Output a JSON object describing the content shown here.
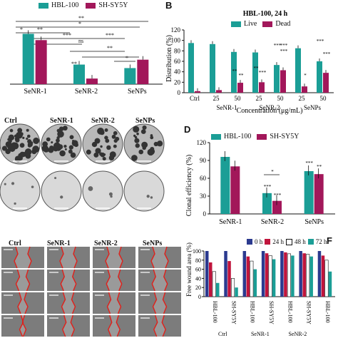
{
  "colors": {
    "teal": "#1b9e96",
    "crimson": "#a2175a",
    "white_bar": "#ffffff"
  },
  "panel_B": {
    "letter": "B"
  },
  "panel_D": {
    "letter": "D"
  },
  "panel_F": {
    "letter": "F"
  },
  "panel_A": {
    "legend": [
      "HBL-100",
      "SH-SY5Y"
    ],
    "sig": [
      "**",
      "*",
      "**",
      "***",
      "ns",
      "**",
      "*",
      "***",
      "**",
      "*"
    ]
  },
  "panel_C": {
    "row_labels": [
      "Ctrl",
      "SeNR-1",
      "SeNR-2",
      "SeNPs"
    ]
  },
  "panel_E": {
    "col_labels": [
      "Ctrl",
      "SeNR-1",
      "SeNR-2",
      "SeNPs"
    ]
  },
  "chart_data": [
    {
      "id": "A",
      "type": "bar",
      "categories": [
        "SeNR-1",
        "SeNR-2",
        "SeNPs"
      ],
      "series": [
        {
          "name": "HBL-100",
          "values": [
            72,
            28,
            23
          ]
        },
        {
          "name": "SH-SY5Y",
          "values": [
            63,
            8,
            35
          ]
        }
      ],
      "ylim": [
        0,
        100
      ]
    },
    {
      "id": "B",
      "type": "bar",
      "title": "HBL-100, 24 h",
      "ylabel": "Distribution (%)",
      "xlabel": "Concentration (μg/mL)",
      "ylim": [
        0,
        120
      ],
      "yticks": [
        0,
        20,
        40,
        60,
        80,
        100,
        120
      ],
      "categories": [
        "Ctrl",
        "25",
        "50",
        "25",
        "50",
        "25",
        "50"
      ],
      "groups": [
        "SeNR-1",
        "SeNR-2",
        "SeNPs"
      ],
      "series": [
        {
          "name": "Live",
          "values": [
            95,
            93,
            78,
            77,
            53,
            85,
            60
          ]
        },
        {
          "name": "Dead",
          "values": [
            3,
            5,
            19,
            20,
            43,
            12,
            38
          ]
        }
      ],
      "annotations": [
        "**",
        "**",
        "**",
        "***",
        "***",
        "***",
        "***",
        "*",
        "***",
        "***"
      ]
    },
    {
      "id": "D",
      "type": "bar",
      "ylabel": "Clonal efficiency (%)",
      "ylim": [
        0,
        120
      ],
      "yticks": [
        0,
        30,
        60,
        90,
        120
      ],
      "categories": [
        "SeNR-1",
        "SeNR-2",
        "SeNPs"
      ],
      "series": [
        {
          "name": "HBL-100",
          "values": [
            96,
            35,
            72
          ]
        },
        {
          "name": "SH-SY5Y",
          "values": [
            80,
            22,
            67
          ]
        }
      ],
      "annotations": [
        "*",
        "***",
        "***",
        "***",
        "**"
      ]
    },
    {
      "id": "F",
      "type": "bar",
      "ylabel": "Free wound area (%)",
      "ylim": [
        0,
        100
      ],
      "yticks": [
        0,
        20,
        40,
        60,
        80,
        100
      ],
      "categories": [
        "HBL-100",
        "SH-SY5Y",
        "HBL-100",
        "SH-SY5Y",
        "HBL-100",
        "SH-SY5Y",
        "HBL-100"
      ],
      "groups": [
        "Ctrl",
        "SeNR-1",
        "SeNR-2"
      ],
      "series": [
        {
          "name": "0 h",
          "values": [
            100,
            100,
            100,
            100,
            100,
            100,
            100
          ]
        },
        {
          "name": "24 h",
          "values": [
            75,
            78,
            88,
            95,
            97,
            95,
            90
          ]
        },
        {
          "name": "48 h",
          "values": [
            55,
            40,
            78,
            90,
            94,
            93,
            80
          ]
        },
        {
          "name": "72 h",
          "values": [
            30,
            20,
            60,
            82,
            90,
            88,
            55
          ]
        }
      ]
    }
  ]
}
